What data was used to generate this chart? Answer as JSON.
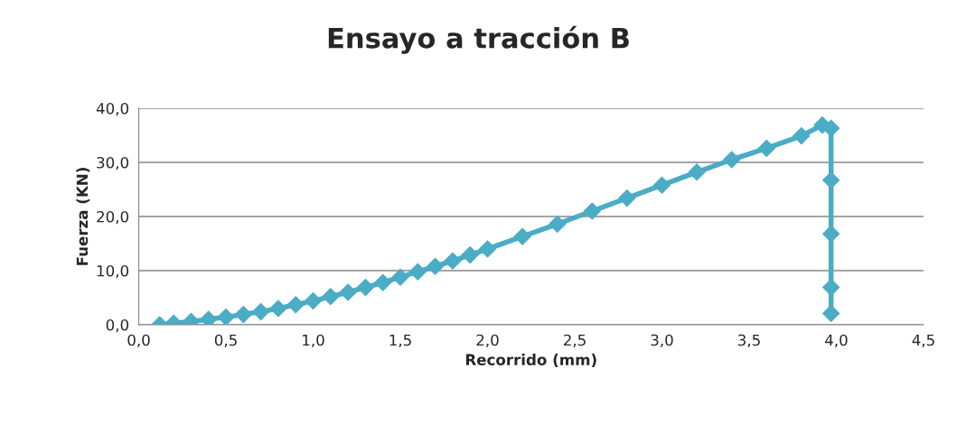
{
  "chart_data": {
    "type": "line",
    "title": "Ensayo a tracción B",
    "xlabel": "Recorrido (mm)",
    "ylabel": "Fuerza (KN)",
    "series": [
      {
        "color": "#4bacc6",
        "x": [
          0.12,
          0.2,
          0.3,
          0.4,
          0.5,
          0.6,
          0.7,
          0.8,
          0.9,
          1.0,
          1.1,
          1.2,
          1.3,
          1.4,
          1.5,
          1.6,
          1.7,
          1.8,
          1.9,
          2.0,
          2.2,
          2.4,
          2.6,
          2.8,
          3.0,
          3.2,
          3.4,
          3.6,
          3.8,
          3.92,
          3.97,
          3.97,
          3.97,
          3.97,
          3.97
        ],
        "values": [
          0.0,
          0.3,
          0.6,
          1.0,
          1.4,
          1.9,
          2.4,
          3.0,
          3.7,
          4.4,
          5.2,
          6.0,
          6.9,
          7.8,
          8.8,
          9.8,
          10.8,
          11.8,
          12.9,
          14.0,
          16.3,
          18.6,
          21.0,
          23.4,
          25.8,
          28.2,
          30.5,
          32.6,
          34.9,
          36.9,
          36.3,
          26.7,
          16.8,
          6.9,
          2.1
        ]
      }
    ],
    "xlim": [
      0,
      4.5
    ],
    "ylim": [
      0,
      40
    ],
    "xticks": [
      {
        "value": 0,
        "label": "0,0"
      },
      {
        "value": 0.5,
        "label": "0,5"
      },
      {
        "value": 1,
        "label": "1,0"
      },
      {
        "value": 1.5,
        "label": "1,5"
      },
      {
        "value": 2,
        "label": "2,0"
      },
      {
        "value": 2.5,
        "label": "2,5"
      },
      {
        "value": 3,
        "label": "3,0"
      },
      {
        "value": 3.5,
        "label": "3,5"
      },
      {
        "value": 4,
        "label": "4,0"
      },
      {
        "value": 4.5,
        "label": "4,5"
      }
    ],
    "yticks": [
      {
        "value": 0,
        "label": "0,0"
      },
      {
        "value": 10,
        "label": "10,0"
      },
      {
        "value": 20,
        "label": "20,0"
      },
      {
        "value": 30,
        "label": "30,0"
      },
      {
        "value": 40,
        "label": "40,0"
      }
    ],
    "grid": "y",
    "marker": "diamond",
    "line_style": "solid"
  }
}
